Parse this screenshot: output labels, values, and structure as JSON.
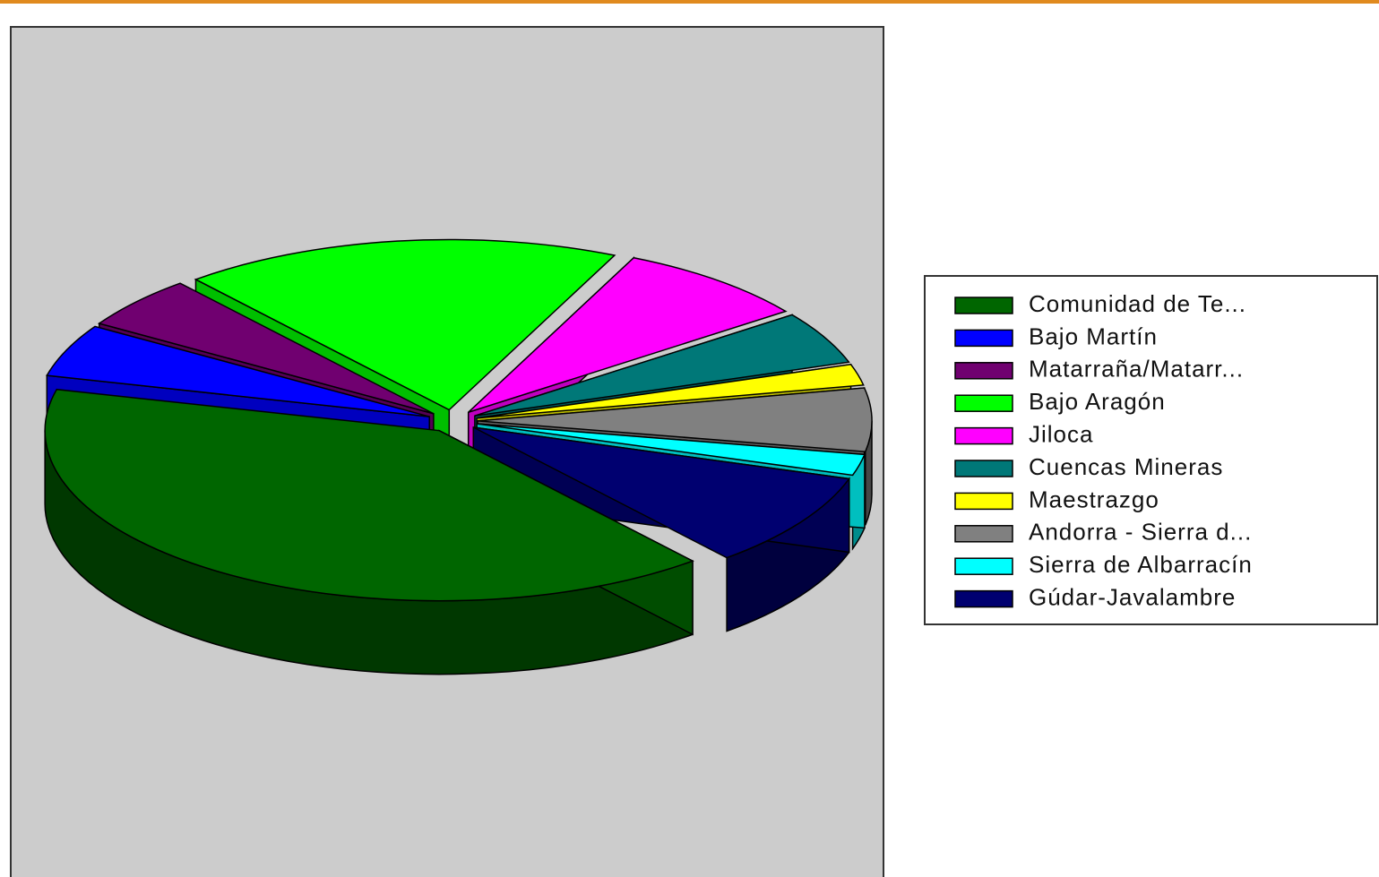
{
  "chart_data": {
    "type": "pie",
    "categories": [
      "Comunidad  de Te...",
      "Bajo Martín",
      "Matarraña/Matarr...",
      "Bajo Aragón",
      "Jiloca",
      "Cuencas Mineras",
      "Maestrazgo",
      "Andorra  -  Sierra  d...",
      "Sierra de Albarracín",
      "Gúdar-Javalambre"
    ],
    "values": [
      40,
      5,
      5,
      18,
      8,
      5,
      2,
      6,
      2,
      9
    ],
    "colors": [
      "#006600",
      "#0000ff",
      "#700070",
      "#00ff00",
      "#ff00ff",
      "#007878",
      "#ffff00",
      "#808080",
      "#00ffff",
      "#000070"
    ],
    "legend": "right"
  }
}
